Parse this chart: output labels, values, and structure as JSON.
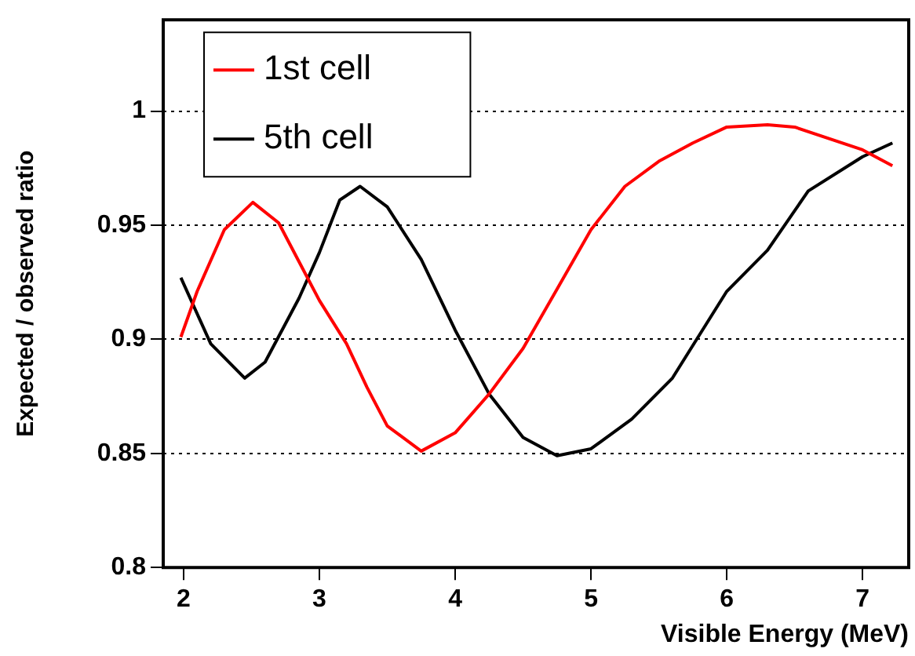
{
  "chart_data": {
    "type": "line",
    "xlabel": "Visible Energy (MeV)",
    "ylabel": "Expected / observed ratio",
    "xlim": [
      1.85,
      7.34
    ],
    "xticks": [
      2,
      3,
      4,
      5,
      6,
      7
    ],
    "ylim": [
      0.8,
      1.04
    ],
    "yticks": [
      0.8,
      0.85,
      0.9,
      0.95,
      1
    ],
    "grid": "y",
    "legend": "top left",
    "marker": "none",
    "line_style": "solid",
    "series": [
      {
        "name": "1st cell",
        "color": "#ff0000",
        "x": [
          1.98,
          2.1,
          2.3,
          2.51,
          2.7,
          2.85,
          3.0,
          3.2,
          3.35,
          3.5,
          3.75,
          4.0,
          4.25,
          4.5,
          4.75,
          5.0,
          5.25,
          5.5,
          5.75,
          6.0,
          6.3,
          6.5,
          7.0,
          7.22
        ],
        "values": [
          0.901,
          0.921,
          0.948,
          0.96,
          0.951,
          0.934,
          0.917,
          0.898,
          0.879,
          0.862,
          0.851,
          0.859,
          0.876,
          0.896,
          0.922,
          0.948,
          0.967,
          0.978,
          0.986,
          0.993,
          0.994,
          0.993,
          0.983,
          0.976
        ]
      },
      {
        "name": "5th cell",
        "color": "#000000",
        "x": [
          1.98,
          2.2,
          2.45,
          2.6,
          2.85,
          3.0,
          3.15,
          3.3,
          3.5,
          3.75,
          4.0,
          4.25,
          4.5,
          4.75,
          5.0,
          5.3,
          5.6,
          6.0,
          6.3,
          6.6,
          7.0,
          7.22
        ],
        "values": [
          0.927,
          0.898,
          0.883,
          0.89,
          0.918,
          0.938,
          0.961,
          0.967,
          0.958,
          0.935,
          0.904,
          0.876,
          0.857,
          0.849,
          0.852,
          0.865,
          0.883,
          0.921,
          0.939,
          0.965,
          0.98,
          0.986
        ]
      }
    ]
  }
}
